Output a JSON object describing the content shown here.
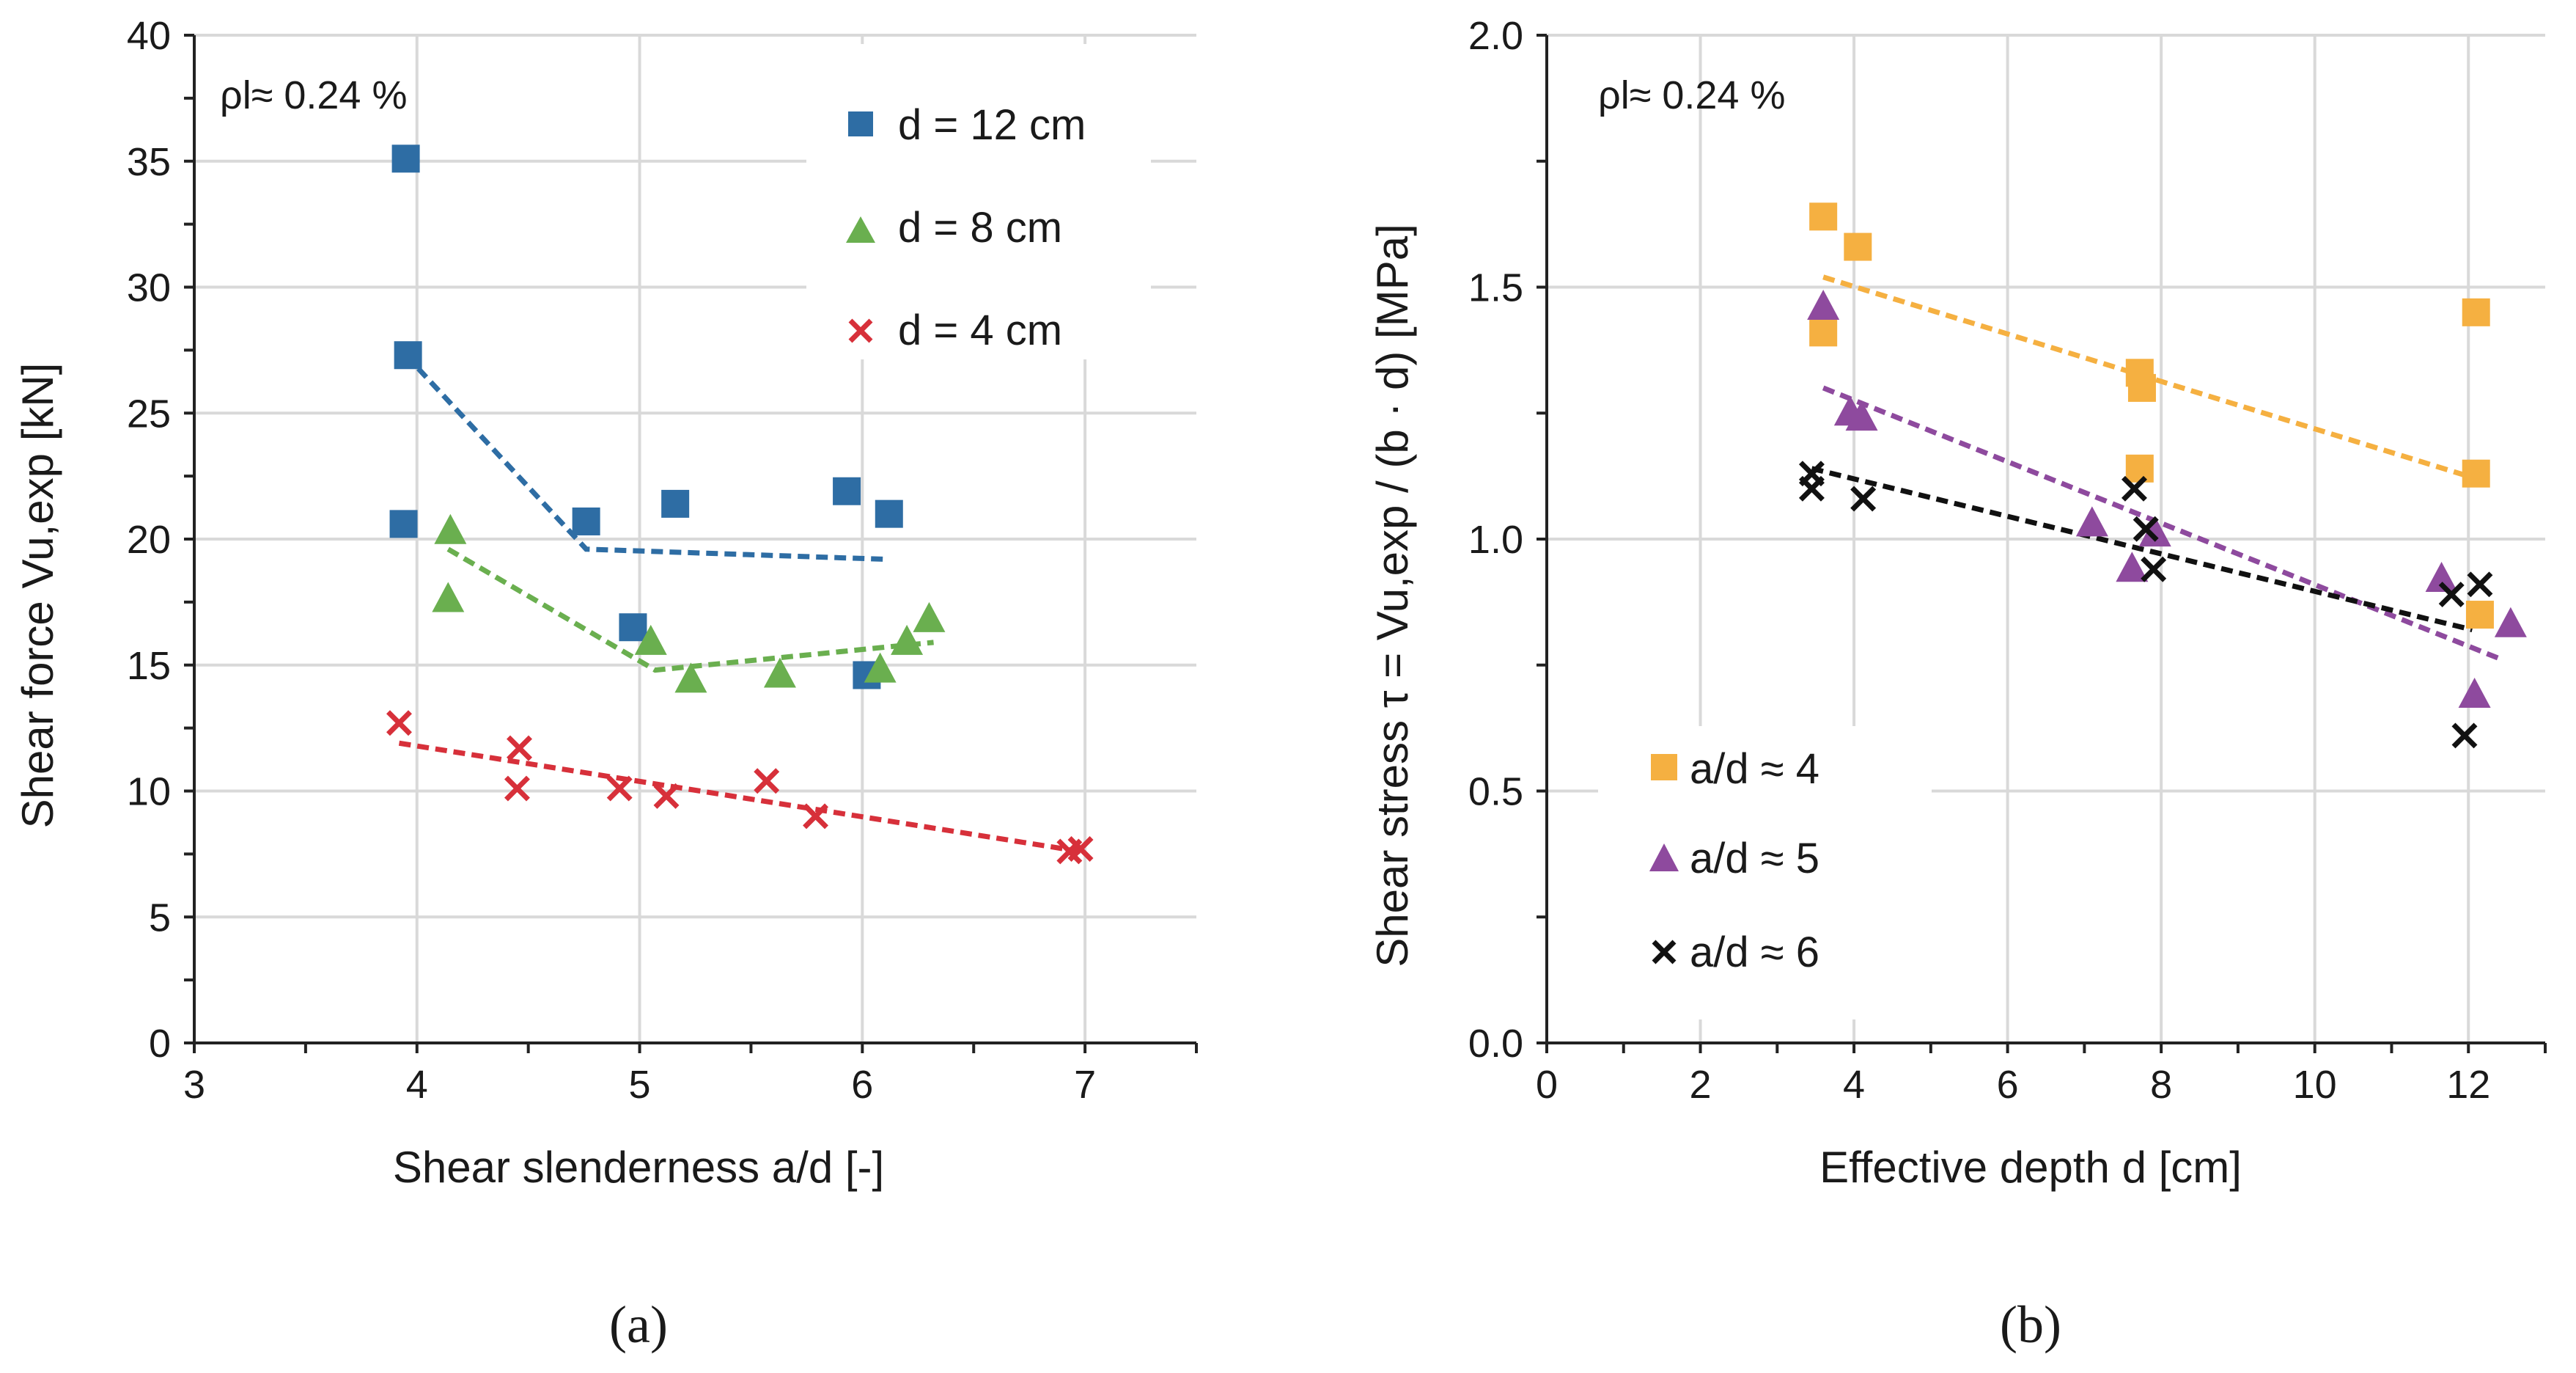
{
  "colors": {
    "blue": "#2E6DA4",
    "green": "#6AAF4F",
    "red": "#D7303A",
    "orange": "#F5B041",
    "purple": "#8E4A9E",
    "black": "#111111",
    "grid": "#D9D9D9"
  },
  "chart_data": [
    {
      "type": "scatter",
      "panel": "a",
      "caption": "(a)",
      "annotation": "ρl≈ 0.24 %",
      "xlabel": "Shear slenderness a/d [-]",
      "ylabel": "Shear force Vu,exp [kN]",
      "xlim": [
        3,
        7.5
      ],
      "ylim": [
        0,
        40
      ],
      "xticks": [
        3,
        4,
        5,
        6,
        7
      ],
      "yticks": [
        0,
        5,
        10,
        15,
        20,
        25,
        30,
        35,
        40
      ],
      "grid": true,
      "legend_position": "top-right",
      "series": [
        {
          "name": "d = 12 cm",
          "marker": "square",
          "color": "#2E6DA4",
          "points": [
            [
              3.95,
              35.1
            ],
            [
              3.96,
              27.3
            ],
            [
              3.94,
              20.6
            ],
            [
              4.76,
              20.7
            ],
            [
              5.16,
              21.4
            ],
            [
              4.97,
              16.5
            ],
            [
              5.93,
              21.9
            ],
            [
              6.12,
              21.0
            ],
            [
              6.02,
              14.6
            ]
          ],
          "trend": [
            [
              3.95,
              27.3
            ],
            [
              4.76,
              19.6
            ],
            [
              6.1,
              19.2
            ]
          ]
        },
        {
          "name": "d = 8 cm",
          "marker": "triangle",
          "color": "#6AAF4F",
          "points": [
            [
              4.15,
              20.3
            ],
            [
              4.14,
              17.6
            ],
            [
              5.05,
              15.9
            ],
            [
              5.23,
              14.4
            ],
            [
              5.63,
              14.6
            ],
            [
              6.08,
              14.8
            ],
            [
              6.2,
              15.9
            ],
            [
              6.3,
              16.8
            ]
          ],
          "trend": [
            [
              4.14,
              19.6
            ],
            [
              5.07,
              14.8
            ],
            [
              6.32,
              15.9
            ]
          ]
        },
        {
          "name": "d = 4 cm",
          "marker": "cross",
          "color": "#D7303A",
          "points": [
            [
              3.92,
              12.7
            ],
            [
              4.46,
              11.7
            ],
            [
              4.45,
              10.1
            ],
            [
              4.91,
              10.1
            ],
            [
              5.12,
              9.8
            ],
            [
              5.57,
              10.4
            ],
            [
              5.79,
              9.0
            ],
            [
              6.93,
              7.6
            ],
            [
              6.98,
              7.7
            ]
          ],
          "trend": [
            [
              3.92,
              11.9
            ],
            [
              6.98,
              7.6
            ]
          ]
        }
      ]
    },
    {
      "type": "scatter",
      "panel": "b",
      "caption": "(b)",
      "annotation": "ρl≈ 0.24 %",
      "xlabel": "Effective depth d [cm]",
      "ylabel": "Shear stress τ = Vu,exp / (b · d) [MPa]",
      "xlim": [
        0,
        13
      ],
      "ylim": [
        0,
        2
      ],
      "xticks": [
        0,
        2,
        4,
        6,
        8,
        10,
        12
      ],
      "yticks": [
        0.0,
        0.5,
        1.0,
        1.5,
        2.0
      ],
      "grid": true,
      "legend_position": "bottom-left",
      "series": [
        {
          "name": "a/d ≈ 4",
          "marker": "square",
          "color": "#F5B041",
          "points": [
            [
              3.6,
              1.64
            ],
            [
              4.05,
              1.58
            ],
            [
              3.6,
              1.41
            ],
            [
              7.72,
              1.33
            ],
            [
              7.75,
              1.3
            ],
            [
              7.72,
              1.14
            ],
            [
              12.1,
              1.45
            ],
            [
              12.1,
              1.13
            ],
            [
              12.15,
              0.85
            ]
          ],
          "trend": [
            [
              3.6,
              1.52
            ],
            [
              12.1,
              1.12
            ]
          ]
        },
        {
          "name": "a/d ≈ 5",
          "marker": "triangle",
          "color": "#8E4A9E",
          "points": [
            [
              3.6,
              1.46
            ],
            [
              3.95,
              1.25
            ],
            [
              4.1,
              1.24
            ],
            [
              7.1,
              1.03
            ],
            [
              7.62,
              0.94
            ],
            [
              7.92,
              1.01
            ],
            [
              11.65,
              0.92
            ],
            [
              12.08,
              0.69
            ],
            [
              12.55,
              0.83
            ]
          ],
          "trend": [
            [
              3.6,
              1.3
            ],
            [
              12.45,
              0.76
            ]
          ]
        },
        {
          "name": "a/d ≈ 6",
          "marker": "cross",
          "color": "#111111",
          "points": [
            [
              3.45,
              1.13
            ],
            [
              3.45,
              1.1
            ],
            [
              4.12,
              1.08
            ],
            [
              7.65,
              1.1
            ],
            [
              7.8,
              1.02
            ],
            [
              7.9,
              0.94
            ],
            [
              11.78,
              0.89
            ],
            [
              12.15,
              0.91
            ],
            [
              11.95,
              0.61
            ]
          ],
          "trend": [
            [
              3.45,
              1.14
            ],
            [
              12.05,
              0.82
            ]
          ]
        }
      ]
    }
  ]
}
